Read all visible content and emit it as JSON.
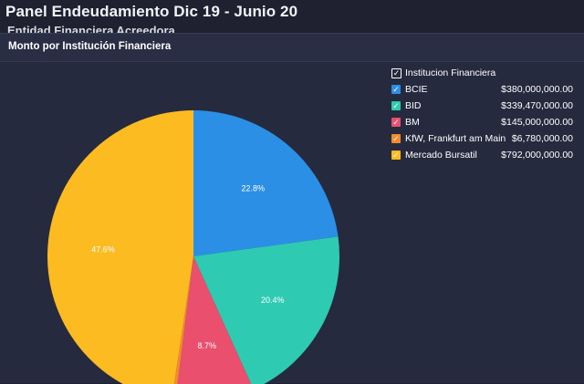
{
  "header": {
    "title": "Panel Endeudamiento Dic 19 - Junio 20",
    "subtitle_partial": "Entidad Financiera Acreedora"
  },
  "panel": {
    "title": "Monto por Institución Financiera"
  },
  "legend": {
    "header_label": "Institucion Financiera",
    "header_checked": true
  },
  "chart_data": {
    "type": "pie",
    "title": "Monto por Institución Financiera",
    "legend_position": "right",
    "series": [
      {
        "name": "BCIE",
        "label": "BCIE",
        "value": 380000000,
        "value_label": "$380,000,000.00",
        "percent_label": "22.8%",
        "color": "#2b8fe6",
        "checked": true
      },
      {
        "name": "BID",
        "label": "BID",
        "value": 339470000,
        "value_label": "$339,470,000.00",
        "percent_label": "20.4%",
        "color": "#2ecbb2",
        "checked": true
      },
      {
        "name": "BM",
        "label": "BM",
        "value": 145000000,
        "value_label": "$145,000,000.00",
        "percent_label": "8.7%",
        "color": "#ea506e",
        "checked": true
      },
      {
        "name": "KfW, Frankfurt am Main",
        "label": "KfW, Frankfurt am Main",
        "value": 6780000,
        "value_label": "$6,780,000.00",
        "percent_label": "",
        "color": "#f58a2b",
        "checked": true
      },
      {
        "name": "Mercado Bursatil",
        "label": "Mercado Bursatil",
        "value": 792000000,
        "value_label": "$792,000,000.00",
        "percent_label": "47.6%",
        "color": "#fdbb22",
        "checked": true
      }
    ]
  }
}
